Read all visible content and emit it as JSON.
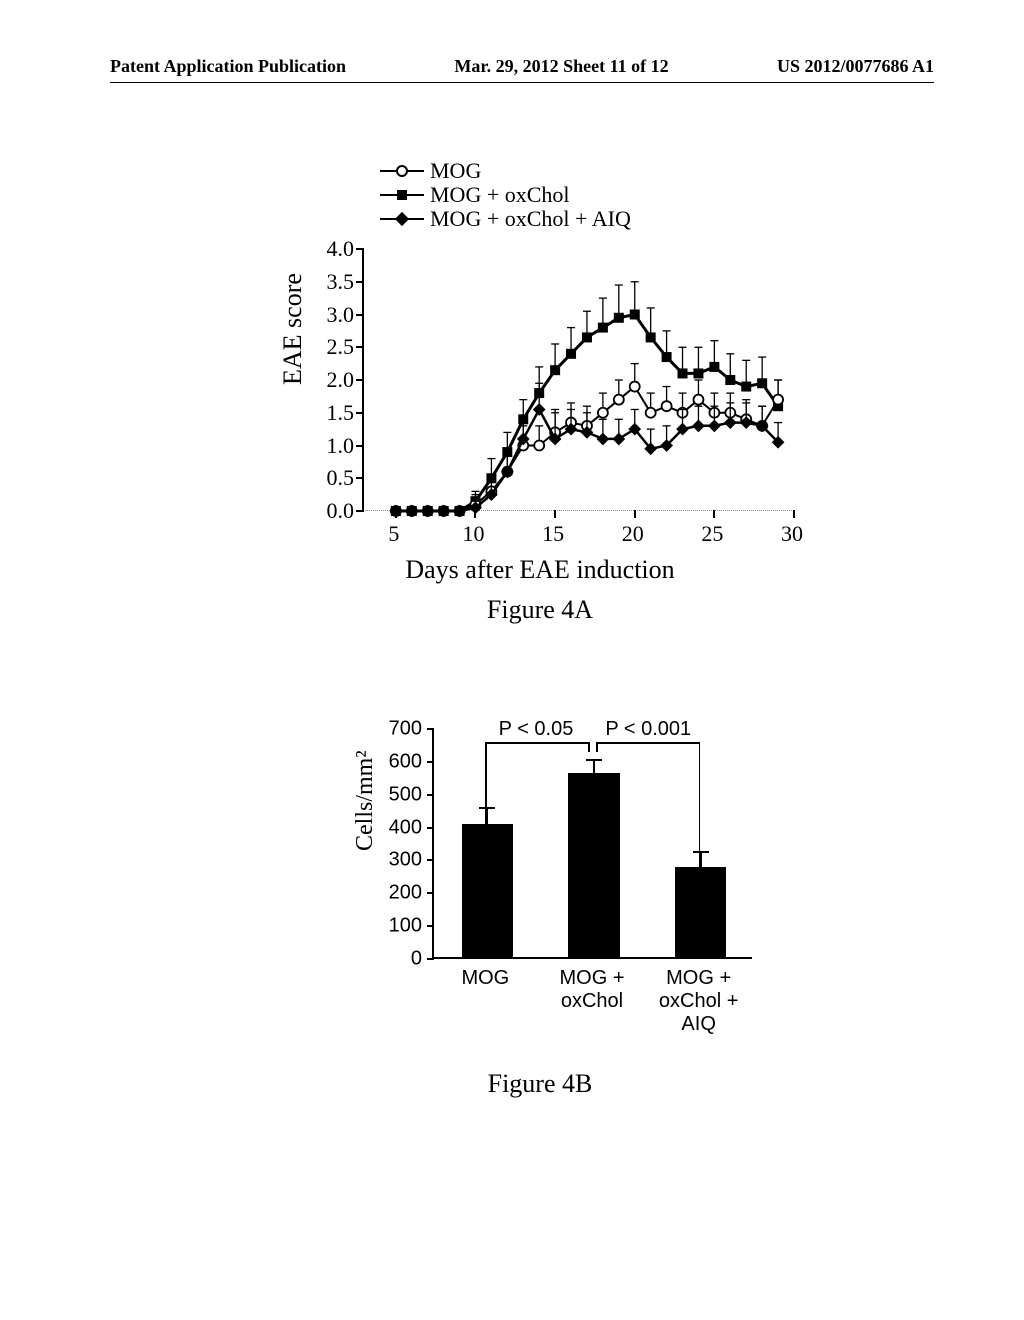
{
  "header": {
    "left": "Patent Application Publication",
    "center": "Mar. 29, 2012  Sheet 11 of 12",
    "right": "US 2012/0077686 A1"
  },
  "figure4a": {
    "type": "line",
    "caption": "Figure 4A",
    "ylabel": "EAE score",
    "xlabel": "Days after EAE induction",
    "ylim": [
      0,
      4.0
    ],
    "ytick_step": 0.5,
    "yticks": [
      "0.0",
      "0.5",
      "1.0",
      "1.5",
      "2.0",
      "2.5",
      "3.0",
      "3.5",
      "4.0"
    ],
    "xlim": [
      3,
      30
    ],
    "xticks": [
      5,
      10,
      15,
      20,
      25,
      30
    ],
    "legend": [
      {
        "label": "MOG",
        "marker": "open-circle"
      },
      {
        "label": "MOG + oxChol",
        "marker": "filled-square"
      },
      {
        "label": "MOG + oxChol + AIQ",
        "marker": "filled-diamond"
      }
    ],
    "series": {
      "mog": {
        "color": "#000000",
        "line_width": 2,
        "marker": "open-circle",
        "x": [
          5,
          6,
          7,
          8,
          9,
          10,
          11,
          12,
          13,
          14,
          15,
          16,
          17,
          18,
          19,
          20,
          21,
          22,
          23,
          24,
          25,
          26,
          27,
          28,
          29
        ],
        "y": [
          0,
          0,
          0,
          0,
          0,
          0.1,
          0.3,
          0.6,
          1.0,
          1.0,
          1.2,
          1.35,
          1.3,
          1.5,
          1.7,
          1.9,
          1.5,
          1.6,
          1.5,
          1.7,
          1.5,
          1.5,
          1.4,
          1.3,
          1.7
        ],
        "err": [
          0,
          0,
          0,
          0,
          0,
          0.2,
          0.2,
          0.3,
          0.3,
          0.3,
          0.35,
          0.3,
          0.3,
          0.3,
          0.3,
          0.35,
          0.3,
          0.3,
          0.3,
          0.3,
          0.3,
          0.3,
          0.3,
          0.3,
          0.3
        ]
      },
      "mog_oxchol": {
        "color": "#000000",
        "line_width": 3,
        "marker": "filled-square",
        "x": [
          5,
          6,
          7,
          8,
          9,
          10,
          11,
          12,
          13,
          14,
          15,
          16,
          17,
          18,
          19,
          20,
          21,
          22,
          23,
          24,
          25,
          26,
          27,
          28,
          29
        ],
        "y": [
          0,
          0,
          0,
          0,
          0,
          0.15,
          0.5,
          0.9,
          1.4,
          1.8,
          2.15,
          2.4,
          2.65,
          2.8,
          2.95,
          3.0,
          2.65,
          2.35,
          2.1,
          2.1,
          2.2,
          2.0,
          1.9,
          1.95,
          1.6
        ],
        "err": [
          0,
          0,
          0,
          0,
          0,
          0.1,
          0.3,
          0.3,
          0.3,
          0.4,
          0.4,
          0.4,
          0.4,
          0.45,
          0.5,
          0.5,
          0.45,
          0.4,
          0.4,
          0.4,
          0.4,
          0.4,
          0.4,
          0.4,
          0.4
        ]
      },
      "mog_oxchol_aiq": {
        "color": "#000000",
        "line_width": 2.5,
        "marker": "filled-diamond",
        "x": [
          5,
          6,
          7,
          8,
          9,
          10,
          11,
          12,
          13,
          14,
          15,
          16,
          17,
          18,
          19,
          20,
          21,
          22,
          23,
          24,
          25,
          26,
          27,
          28,
          29
        ],
        "y": [
          0,
          0,
          0,
          0,
          0,
          0.05,
          0.25,
          0.6,
          1.1,
          1.55,
          1.1,
          1.25,
          1.2,
          1.1,
          1.1,
          1.25,
          0.95,
          1.0,
          1.25,
          1.3,
          1.3,
          1.35,
          1.35,
          1.3,
          1.05
        ],
        "err": [
          0,
          0,
          0,
          0,
          0,
          0.1,
          0.2,
          0.3,
          0.35,
          0.4,
          0.4,
          0.3,
          0.3,
          0.3,
          0.3,
          0.3,
          0.3,
          0.3,
          0.3,
          0.3,
          0.3,
          0.3,
          0.3,
          0.3,
          0.3
        ]
      }
    },
    "background_color": "#ffffff",
    "title": "",
    "title_fontsize": 0,
    "label_fontsize": 26,
    "tick_fontsize": 22
  },
  "figure4b": {
    "type": "bar",
    "caption": "Figure 4B",
    "ylabel": "Cells/mm²",
    "ylim": [
      0,
      700
    ],
    "ytick_step": 100,
    "yticks": [
      0,
      100,
      200,
      300,
      400,
      500,
      600,
      700
    ],
    "categories": [
      "MOG",
      "MOG +\noxChol",
      "MOG +\noxChol + AIQ"
    ],
    "values": [
      405,
      560,
      275
    ],
    "errors": [
      55,
      45,
      50
    ],
    "bar_color": "#000000",
    "bar_width": 0.48,
    "pvalues": [
      {
        "label": "P < 0.05",
        "from": 0,
        "to": 1
      },
      {
        "label": "P < 0.001",
        "from": 1,
        "to": 2
      }
    ],
    "background_color": "#ffffff",
    "label_fontsize": 24,
    "tick_fontsize": 20
  }
}
